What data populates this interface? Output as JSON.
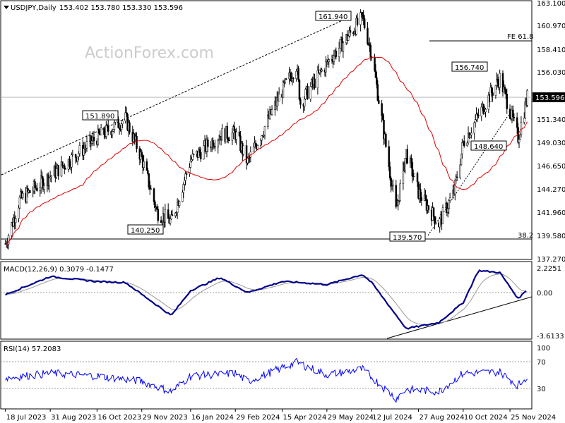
{
  "header": {
    "symbol": "USDJPY,Daily",
    "ohlc": "153.402 153.780 153.330 153.596"
  },
  "watermark": "ActionForex.com",
  "colors": {
    "candle": "#000000",
    "ma": "#e00000",
    "macd": "#00008b",
    "signal": "#999999",
    "rsi": "#0000ff",
    "trendline": "#000000"
  },
  "chart_data": [
    {
      "type": "candlestick",
      "title": "USDJPY,Daily",
      "y_axis_ticks": [
        "163.100",
        "160.970",
        "158.410",
        "156.030",
        "153.596",
        "151.340",
        "149.030",
        "146.650",
        "144.270",
        "141.960",
        "139.580",
        "137.270"
      ],
      "current_price": "153.596",
      "x_ticks": [
        "18 Jul 2023",
        "31 Aug 2023",
        "16 Oct 2023",
        "29 Nov 2023",
        "16 Jan 2024",
        "29 Feb 2024",
        "15 Apr 2024",
        "29 May 2024",
        "12 Jul 2024",
        "27 Aug 2024",
        "10 Oct 2024",
        "25 Nov 2024"
      ],
      "annotations": [
        {
          "label": "161.940",
          "price": 161.94,
          "date": "2024-07-03"
        },
        {
          "label": "151.890",
          "price": 151.89,
          "date": "2023-11-13"
        },
        {
          "label": "140.250",
          "price": 140.25,
          "date": "2023-12-28"
        },
        {
          "label": "156.740",
          "price": 156.74,
          "date": "2024-11-15"
        },
        {
          "label": "148.640",
          "price": 148.64,
          "date": "2024-12-03"
        },
        {
          "label": "139.570",
          "price": 139.57,
          "date": "2024-09-16"
        },
        {
          "label": "FE 61.8",
          "price": 159.5
        },
        {
          "label": "38.2",
          "price": 139.2
        }
      ],
      "price_path": [
        {
          "date": "2023-07-18",
          "close": 138.8
        },
        {
          "date": "2023-08-01",
          "close": 143.2
        },
        {
          "date": "2023-08-31",
          "close": 145.6
        },
        {
          "date": "2023-10-16",
          "close": 149.5
        },
        {
          "date": "2023-11-13",
          "close": 151.4
        },
        {
          "date": "2023-11-29",
          "close": 147.4
        },
        {
          "date": "2023-12-14",
          "close": 142.0
        },
        {
          "date": "2023-12-28",
          "close": 141.0
        },
        {
          "date": "2024-01-16",
          "close": 147.2
        },
        {
          "date": "2024-02-14",
          "close": 149.8
        },
        {
          "date": "2024-02-29",
          "close": 149.9
        },
        {
          "date": "2024-03-12",
          "close": 147.0
        },
        {
          "date": "2024-04-15",
          "close": 154.2
        },
        {
          "date": "2024-04-29",
          "close": 156.8
        },
        {
          "date": "2024-05-03",
          "close": 153.0
        },
        {
          "date": "2024-05-29",
          "close": 157.0
        },
        {
          "date": "2024-07-03",
          "close": 161.6
        },
        {
          "date": "2024-07-12",
          "close": 158.0
        },
        {
          "date": "2024-08-05",
          "close": 142.0
        },
        {
          "date": "2024-08-15",
          "close": 148.0
        },
        {
          "date": "2024-08-27",
          "close": 144.0
        },
        {
          "date": "2024-09-16",
          "close": 140.8
        },
        {
          "date": "2024-10-01",
          "close": 144.0
        },
        {
          "date": "2024-10-10",
          "close": 149.0
        },
        {
          "date": "2024-11-15",
          "close": 155.5
        },
        {
          "date": "2024-12-03",
          "close": 149.5
        },
        {
          "date": "2024-12-12",
          "close": 153.6
        }
      ]
    },
    {
      "type": "line",
      "title": "MACD(12,26,9) 0.3079 -0.1477",
      "y_axis_ticks": [
        "2.2251",
        "0.00",
        "-3.6133"
      ],
      "series": [
        {
          "name": "MACD",
          "points": [
            {
              "date": "2023-07-18",
              "value": -0.2
            },
            {
              "date": "2023-08-31",
              "value": 1.6
            },
            {
              "date": "2023-10-16",
              "value": 1.1
            },
            {
              "date": "2023-11-13",
              "value": 1.0
            },
            {
              "date": "2023-12-28",
              "value": -2.3
            },
            {
              "date": "2024-01-16",
              "value": 0.2
            },
            {
              "date": "2024-02-14",
              "value": 1.5
            },
            {
              "date": "2024-03-12",
              "value": 0.0
            },
            {
              "date": "2024-04-15",
              "value": 1.1
            },
            {
              "date": "2024-05-03",
              "value": 1.0
            },
            {
              "date": "2024-05-29",
              "value": 0.8
            },
            {
              "date": "2024-07-03",
              "value": 1.8
            },
            {
              "date": "2024-07-12",
              "value": 1.0
            },
            {
              "date": "2024-08-15",
              "value": -3.6
            },
            {
              "date": "2024-09-16",
              "value": -3.0
            },
            {
              "date": "2024-10-10",
              "value": -1.0
            },
            {
              "date": "2024-10-25",
              "value": 2.2
            },
            {
              "date": "2024-11-15",
              "value": 2.0
            },
            {
              "date": "2024-12-03",
              "value": -0.6
            },
            {
              "date": "2024-12-12",
              "value": 0.3
            }
          ]
        }
      ]
    },
    {
      "type": "line",
      "title": "RSI(14) 57.2083",
      "y_axis_ticks": [
        "100",
        "70",
        "30",
        "0"
      ],
      "series": [
        {
          "name": "RSI(14)",
          "points": [
            {
              "date": "2023-07-18",
              "value": 55
            },
            {
              "date": "2023-08-31",
              "value": 62
            },
            {
              "date": "2023-10-16",
              "value": 58
            },
            {
              "date": "2023-11-29",
              "value": 50
            },
            {
              "date": "2023-12-28",
              "value": 35
            },
            {
              "date": "2024-01-16",
              "value": 58
            },
            {
              "date": "2024-02-29",
              "value": 62
            },
            {
              "date": "2024-03-12",
              "value": 50
            },
            {
              "date": "2024-04-15",
              "value": 70
            },
            {
              "date": "2024-04-29",
              "value": 78
            },
            {
              "date": "2024-05-29",
              "value": 60
            },
            {
              "date": "2024-07-03",
              "value": 68
            },
            {
              "date": "2024-08-05",
              "value": 25
            },
            {
              "date": "2024-08-15",
              "value": 38
            },
            {
              "date": "2024-09-16",
              "value": 35
            },
            {
              "date": "2024-10-10",
              "value": 62
            },
            {
              "date": "2024-11-15",
              "value": 64
            },
            {
              "date": "2024-12-03",
              "value": 44
            },
            {
              "date": "2024-12-12",
              "value": 57
            }
          ]
        }
      ]
    }
  ]
}
